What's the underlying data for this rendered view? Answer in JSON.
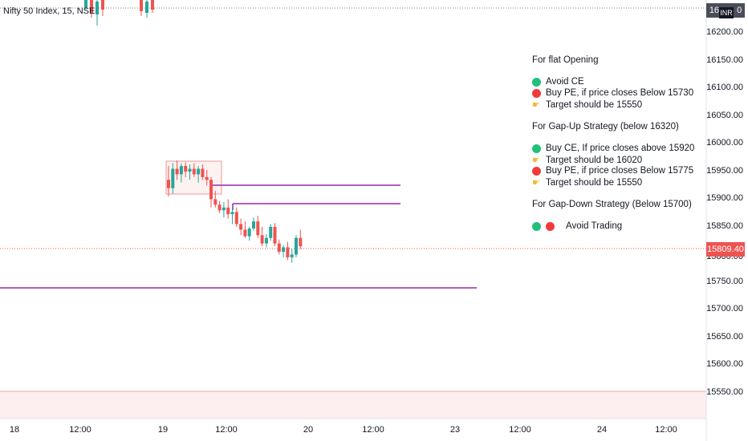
{
  "symbol": {
    "title": "Nifty 50 Index, 15, NSE"
  },
  "colors": {
    "up": "#26a69a",
    "down": "#ef5350",
    "level": "#9c27b0",
    "green_dot": "#21c17a",
    "red_dot": "#ef3b3b",
    "hand": "#f2b830"
  },
  "price_axis": {
    "labels": [
      "16200.00",
      "16150.00",
      "16100.00",
      "16050.00",
      "16000.00",
      "15950.00",
      "15900.00",
      "15850.00",
      "15800.00",
      "15750.00",
      "15700.00",
      "15650.00",
      "15600.00",
      "15550.00"
    ],
    "top_tag": "16",
    "top_tag_right": "0",
    "currency": "INR",
    "last_price": "15809.40"
  },
  "time_axis": {
    "labels": [
      "18",
      "12:00",
      "19",
      "12:00",
      "20",
      "12:00",
      "23",
      "12:00",
      "24",
      "12:00"
    ]
  },
  "notes": [
    {
      "icon": "none",
      "text": "For flat Opening"
    },
    {
      "icon": "green-dot",
      "text": "Avoid CE"
    },
    {
      "icon": "red-dot",
      "text": "Buy PE, if price closes Below 15730"
    },
    {
      "icon": "hand",
      "text": "Target should be 15550"
    },
    {
      "icon": "none",
      "text": "For Gap-Up Strategy (below 16320)"
    },
    {
      "icon": "green-dot",
      "text": "Buy CE,  If price closes above 15920"
    },
    {
      "icon": "hand",
      "text": "Target should be 16020"
    },
    {
      "icon": "red-dot",
      "text": "Buy PE, if price closes Below 15775"
    },
    {
      "icon": "hand",
      "text": "Target should be 15550"
    },
    {
      "icon": "none",
      "text": "For Gap-Down Strategy (Below 15700)"
    },
    {
      "icon": "both-dots",
      "text": "Avoid Trading"
    }
  ],
  "chart_data": {
    "type": "candlestick",
    "ylim": [
      15520,
      16250
    ],
    "levels": [
      15920,
      15890,
      15738
    ],
    "last_price": 15809.4,
    "candles_day19": [
      [
        15930,
        15955,
        15900,
        15915
      ],
      [
        15915,
        15960,
        15905,
        15950
      ],
      [
        15950,
        15965,
        15930,
        15940
      ],
      [
        15940,
        15960,
        15925,
        15955
      ],
      [
        15955,
        15962,
        15935,
        15945
      ],
      [
        15945,
        15958,
        15930,
        15950
      ],
      [
        15950,
        15960,
        15935,
        15940
      ],
      [
        15940,
        15955,
        15925,
        15950
      ],
      [
        15950,
        15958,
        15930,
        15935
      ],
      [
        15935,
        15948,
        15920,
        15930
      ],
      [
        15930,
        15935,
        15880,
        15895
      ],
      [
        15895,
        15910,
        15880,
        15885
      ],
      [
        15885,
        15892,
        15870,
        15875
      ],
      [
        15875,
        15890,
        15862,
        15880
      ],
      [
        15880,
        15895,
        15860,
        15868
      ],
      [
        15868,
        15880,
        15850,
        15872
      ],
      [
        15872,
        15880,
        15845,
        15850
      ],
      [
        15850,
        15860,
        15830,
        15840
      ],
      [
        15840,
        15855,
        15825,
        15828
      ],
      [
        15828,
        15845,
        15820,
        15842
      ],
      [
        15842,
        15862,
        15838,
        15855
      ],
      [
        15855,
        15865,
        15825,
        15830
      ],
      [
        15830,
        15845,
        15810,
        15815
      ],
      [
        15815,
        15832,
        15808,
        15825
      ],
      [
        15825,
        15850,
        15820,
        15845
      ],
      [
        15845,
        15852,
        15810,
        15815
      ],
      [
        15815,
        15822,
        15795,
        15800
      ],
      [
        15800,
        15812,
        15790,
        15808
      ],
      [
        15808,
        15818,
        15785,
        15790
      ],
      [
        15790,
        15805,
        15780,
        15795
      ],
      [
        15795,
        15830,
        15790,
        15825
      ],
      [
        15825,
        15840,
        15805,
        15810
      ]
    ]
  }
}
